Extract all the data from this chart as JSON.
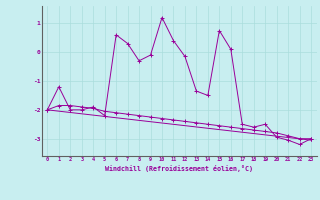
{
  "xlabel": "Windchill (Refroidissement éolien,°C)",
  "background_color": "#c8eef0",
  "line_color": "#990099",
  "grid_color": "#aadddd",
  "xlim": [
    -0.5,
    23.5
  ],
  "ylim": [
    -3.6,
    1.6
  ],
  "yticks": [
    -3,
    -2,
    -1,
    0,
    1
  ],
  "xticks": [
    0,
    1,
    2,
    3,
    4,
    5,
    6,
    7,
    8,
    9,
    10,
    11,
    12,
    13,
    14,
    15,
    16,
    17,
    18,
    19,
    20,
    21,
    22,
    23
  ],
  "series1_x": [
    0,
    1,
    2,
    3,
    4,
    5,
    6,
    7,
    8,
    9,
    10,
    11,
    12,
    13,
    14,
    15,
    16,
    17,
    18,
    19,
    20,
    21,
    22,
    23
  ],
  "series1_y": [
    -2.0,
    -1.2,
    -2.0,
    -2.0,
    -1.9,
    -2.2,
    0.6,
    0.3,
    -0.3,
    -0.1,
    1.2,
    0.4,
    -0.15,
    -1.35,
    -1.5,
    0.75,
    0.1,
    -2.5,
    -2.6,
    -2.5,
    -2.95,
    -3.05,
    -3.2,
    -3.0
  ],
  "series2_x": [
    0,
    1,
    2,
    3,
    4,
    5,
    6,
    7,
    8,
    9,
    10,
    11,
    12,
    13,
    14,
    15,
    16,
    17,
    18,
    19,
    20,
    21,
    22,
    23
  ],
  "series2_y": [
    -2.0,
    -1.85,
    -1.85,
    -1.9,
    -1.95,
    -2.05,
    -2.1,
    -2.15,
    -2.2,
    -2.25,
    -2.3,
    -2.35,
    -2.4,
    -2.45,
    -2.5,
    -2.55,
    -2.6,
    -2.65,
    -2.7,
    -2.75,
    -2.8,
    -2.9,
    -3.0,
    -3.0
  ],
  "series3_x": [
    0,
    23
  ],
  "series3_y": [
    -2.0,
    -3.05
  ]
}
